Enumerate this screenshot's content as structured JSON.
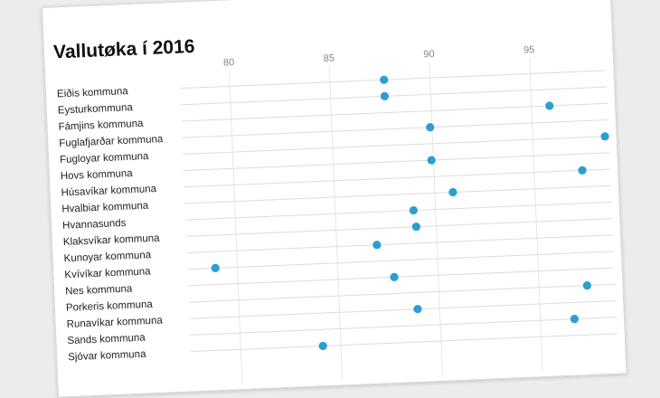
{
  "chart_data": {
    "type": "scatter",
    "title": "Vallutøka í 2016",
    "xlabel": "",
    "ylabel": "",
    "xlim": [
      77.5,
      98.8
    ],
    "xticks": [
      "80",
      "85",
      "90",
      "95"
    ],
    "xtick_values": [
      80,
      85,
      90,
      95
    ],
    "grid": true,
    "point_color": "#2a9fd0",
    "categories": [
      "Eiðis kommuna",
      "Eysturkommuna",
      "Fámjins kommuna",
      "Fuglafjarðar kommuna",
      "Fugloyar kommuna",
      "Hovs kommuna",
      "Húsavíkar kommuna",
      "Hvalbiar kommuna",
      "Hvannasunds",
      "Klaksvíkar kommuna",
      "Kunoyar kommuna",
      "Kvívíkar kommuna",
      "Nes kommuna",
      "Porkeris kommuna",
      "Runavíkar kommuna",
      "Sands kommuna",
      "Sjóvar kommuna"
    ],
    "values": [
      87.7,
      87.7,
      95.9,
      89.9,
      98.6,
      89.9,
      97.4,
      90.9,
      88.9,
      89.0,
      87.0,
      78.9,
      87.8,
      97.4,
      88.9,
      96.7,
      84.1
    ]
  }
}
